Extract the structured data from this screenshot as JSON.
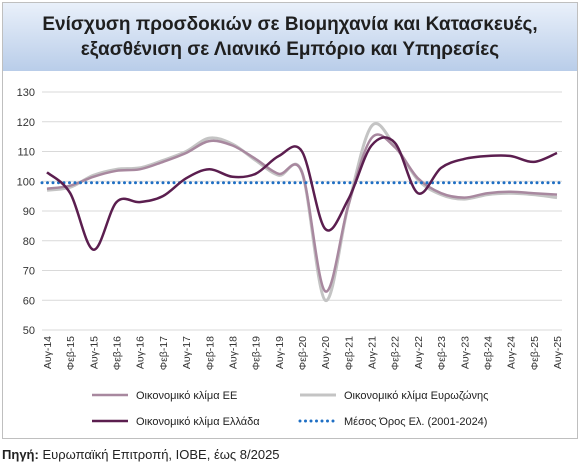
{
  "title_lines": [
    "Ενίσχυση προσδοκιών σε Βιομηχανία και Κατασκευές,",
    "εξασθένιση σε Λιανικό Εμπόριο και Υπηρεσίες"
  ],
  "source": {
    "label": "Πηγή:",
    "text": " Ευρωπαϊκή Επιτροπή, ΙΟΒΕ, έως 8/2025"
  },
  "colors": {
    "eu": "#a8889f",
    "eurozone": "#c4c4c4",
    "greece": "#5b1e4f",
    "average": "#1f6fc4"
  },
  "chart_data": {
    "type": "line",
    "x": [
      "Aug-14",
      "Feb-15",
      "Aug-15",
      "Feb-16",
      "Aug-16",
      "Feb-17",
      "Aug-17",
      "Feb-18",
      "Aug-18",
      "Feb-19",
      "Aug-19",
      "Feb-20",
      "Aug-20",
      "Feb-21",
      "Aug-21",
      "Feb-22",
      "Aug-22",
      "Feb-23",
      "Aug-23",
      "Feb-24",
      "Aug-24",
      "Feb-25",
      "Aug-25"
    ],
    "x_tick_labels": [
      "Αυγ-14",
      "Φεβ-15",
      "Αυγ-15",
      "Φεβ-16",
      "Αυγ-16",
      "Φεβ-17",
      "Αυγ-17",
      "Φεβ-18",
      "Αυγ-18",
      "Φεβ-19",
      "Αυγ-19",
      "Φεβ-20",
      "Αυγ-20",
      "Φεβ-21",
      "Αυγ-21",
      "Φεβ-22",
      "Αυγ-22",
      "Φεβ-23",
      "Αυγ-23",
      "Φεβ-24",
      "Αυγ-24",
      "Φεβ-25",
      "Αυγ-25"
    ],
    "y_ticks": [
      50,
      60,
      70,
      80,
      90,
      100,
      110,
      120,
      130
    ],
    "ylim": [
      50,
      130
    ],
    "grid": "horizontal",
    "legend_position": "bottom",
    "series": [
      {
        "name": "Οικονομικό κλίμα ΕΕ",
        "key": "eu",
        "values": [
          97.5,
          98.5,
          101.5,
          103.5,
          104,
          106.5,
          109.5,
          113.5,
          112,
          107.5,
          102.5,
          103,
          63,
          92,
          114.5,
          111.5,
          101,
          96,
          94.5,
          96,
          96.5,
          96,
          95.5
        ]
      },
      {
        "name": "Οικονομικό κλίμα Ευρωζώνης",
        "key": "eurozone",
        "values": [
          97,
          98,
          102,
          104,
          104.5,
          107,
          110,
          114.5,
          112.5,
          107,
          102,
          103,
          60,
          92,
          118.5,
          112,
          100.5,
          95.5,
          94,
          95.5,
          96,
          95.5,
          94.5
        ]
      },
      {
        "name": "Οικονομικό κλίμα Ελλάδα",
        "key": "greece",
        "values": [
          103,
          96,
          77,
          93,
          93,
          95,
          101,
          104,
          101.5,
          102.5,
          108.5,
          110,
          84,
          94,
          112,
          113,
          96,
          104.5,
          107.5,
          108.5,
          108.5,
          106.5,
          109.5
        ]
      },
      {
        "name": "Μέσος Όρος Ελ. (2001-2024)",
        "key": "average",
        "values": [
          99.5,
          99.5,
          99.5,
          99.5,
          99.5,
          99.5,
          99.5,
          99.5,
          99.5,
          99.5,
          99.5,
          99.5,
          99.5,
          99.5,
          99.5,
          99.5,
          99.5,
          99.5,
          99.5,
          99.5,
          99.5,
          99.5,
          99.5
        ]
      }
    ]
  }
}
